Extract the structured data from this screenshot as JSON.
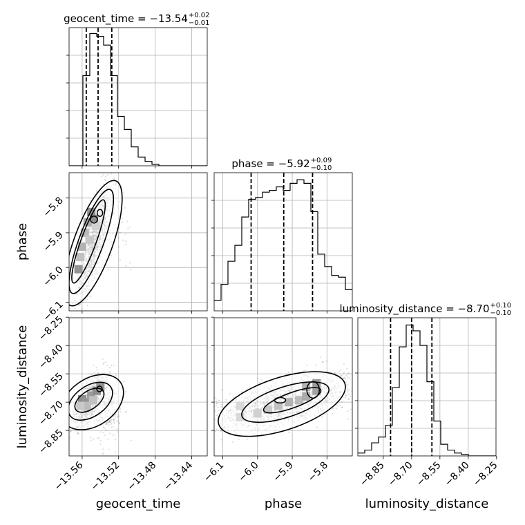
{
  "chart_data": {
    "type": "corner",
    "parameters": [
      "geocent_time",
      "phase",
      "luminosity_distance"
    ],
    "titles": [
      {
        "param": "geocent_time",
        "text": "geocent_time = −13.54",
        "plus": "+0.02",
        "minus": "−0.01"
      },
      {
        "param": "phase",
        "text": "phase = −5.92",
        "plus": "+0.09",
        "minus": "−0.10"
      },
      {
        "param": "luminosity_distance",
        "text": "luminosity_distance = −8.70",
        "plus": "+0.10",
        "minus": "−0.10"
      }
    ],
    "ranges": {
      "geocent_time": [
        -13.5743,
        -13.4229
      ],
      "phase": [
        -6.125,
        -5.727
      ],
      "luminosity_distance": [
        -8.985,
        -8.253
      ]
    },
    "ticks": {
      "geocent_time": [
        -13.56,
        -13.52,
        -13.48,
        -13.44
      ],
      "phase": [
        -6.1,
        -6.0,
        -5.9,
        -5.8
      ],
      "luminosity_distance": [
        -8.85,
        -8.7,
        -8.55,
        -8.4,
        -8.25
      ]
    },
    "tick_labels": {
      "geocent_time": [
        "−13.56",
        "−13.52",
        "−13.48",
        "−13.44"
      ],
      "phase": [
        "−6.1",
        "−6.0",
        "−5.9",
        "−5.8"
      ],
      "luminosity_distance": [
        "−8.85",
        "−8.70",
        "−8.55",
        "−8.40",
        "−8.25"
      ]
    },
    "quantiles": {
      "geocent_time": [
        -13.5555,
        -13.5425,
        -13.5275
      ],
      "phase": [
        -6.0185,
        -5.9245,
        -5.8415
      ],
      "luminosity_distance": [
        -8.8115,
        -8.7,
        -8.5925
      ]
    },
    "histograms": {
      "geocent_time": {
        "edges_start": -13.5743,
        "bin_width": 0.00757,
        "counts": [
          0,
          0,
          0.62,
          0.91,
          0.89,
          0.83,
          0.62,
          0.34,
          0.25,
          0.13,
          0.06,
          0.03,
          0.01,
          0,
          0,
          0,
          0,
          0,
          0,
          0
        ]
      },
      "phase": {
        "edges_start": -6.125,
        "bin_width": 0.0199,
        "counts": [
          0.06,
          0.15,
          0.28,
          0.37,
          0.53,
          0.63,
          0.64,
          0.67,
          0.68,
          0.7,
          0.68,
          0.72,
          0.74,
          0.72,
          0.56,
          0.32,
          0.25,
          0.2,
          0.19,
          0.12
        ]
      },
      "luminosity_distance": {
        "edges_start": -8.985,
        "bin_width": 0.0366,
        "counts": [
          0.02,
          0.04,
          0.09,
          0.13,
          0.21,
          0.47,
          0.75,
          0.9,
          0.86,
          0.76,
          0.51,
          0.24,
          0.08,
          0.04,
          0.02,
          0.01,
          0,
          0,
          0,
          0
        ]
      }
    },
    "hist_ymax": {
      "geocent_time": 0.95,
      "phase": 0.78,
      "luminosity_distance": 0.95
    },
    "contour_levels": [
      0.39,
      0.86,
      1.0
    ]
  }
}
